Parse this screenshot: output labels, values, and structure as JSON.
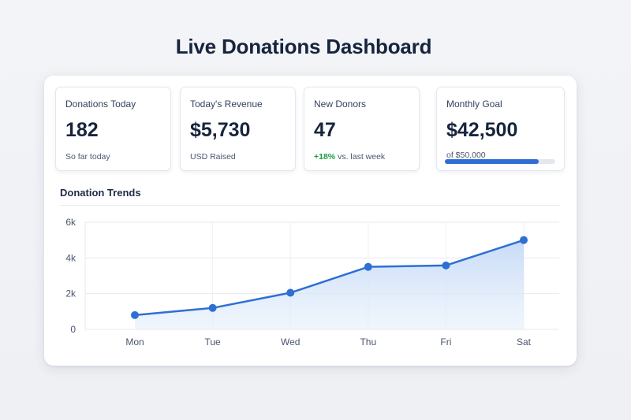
{
  "page": {
    "title": "Live Donations Dashboard"
  },
  "cards": [
    {
      "label": "Donations Today",
      "value": "182",
      "sub": "So far today"
    },
    {
      "label": "Today's Revenue",
      "value": "$5,730",
      "sub": "USD Raised"
    },
    {
      "label": "New Donors",
      "value": "47",
      "sub_highlight": "+18%",
      "sub": " vs. last week"
    },
    {
      "label": "Monthly Goal",
      "value": "$42,500",
      "sub": "of $50,000",
      "progress": 0.85
    }
  ],
  "trends": {
    "title": "Donation Trends"
  },
  "colors": {
    "accent": "#2f6fd4",
    "positive": "#1e9a45",
    "area": "#cfe0f8"
  },
  "chart_data": {
    "type": "area",
    "categories": [
      "Mon",
      "Tue",
      "Wed",
      "Thu",
      "Fri",
      "Sat"
    ],
    "values": [
      800,
      1200,
      2050,
      3500,
      3580,
      5000
    ],
    "ylim": [
      0,
      6000
    ],
    "y_ticks": [
      0,
      2000,
      4000,
      6000
    ],
    "y_tick_labels": [
      "0",
      "2k",
      "4k",
      "6k"
    ],
    "grid": true
  }
}
